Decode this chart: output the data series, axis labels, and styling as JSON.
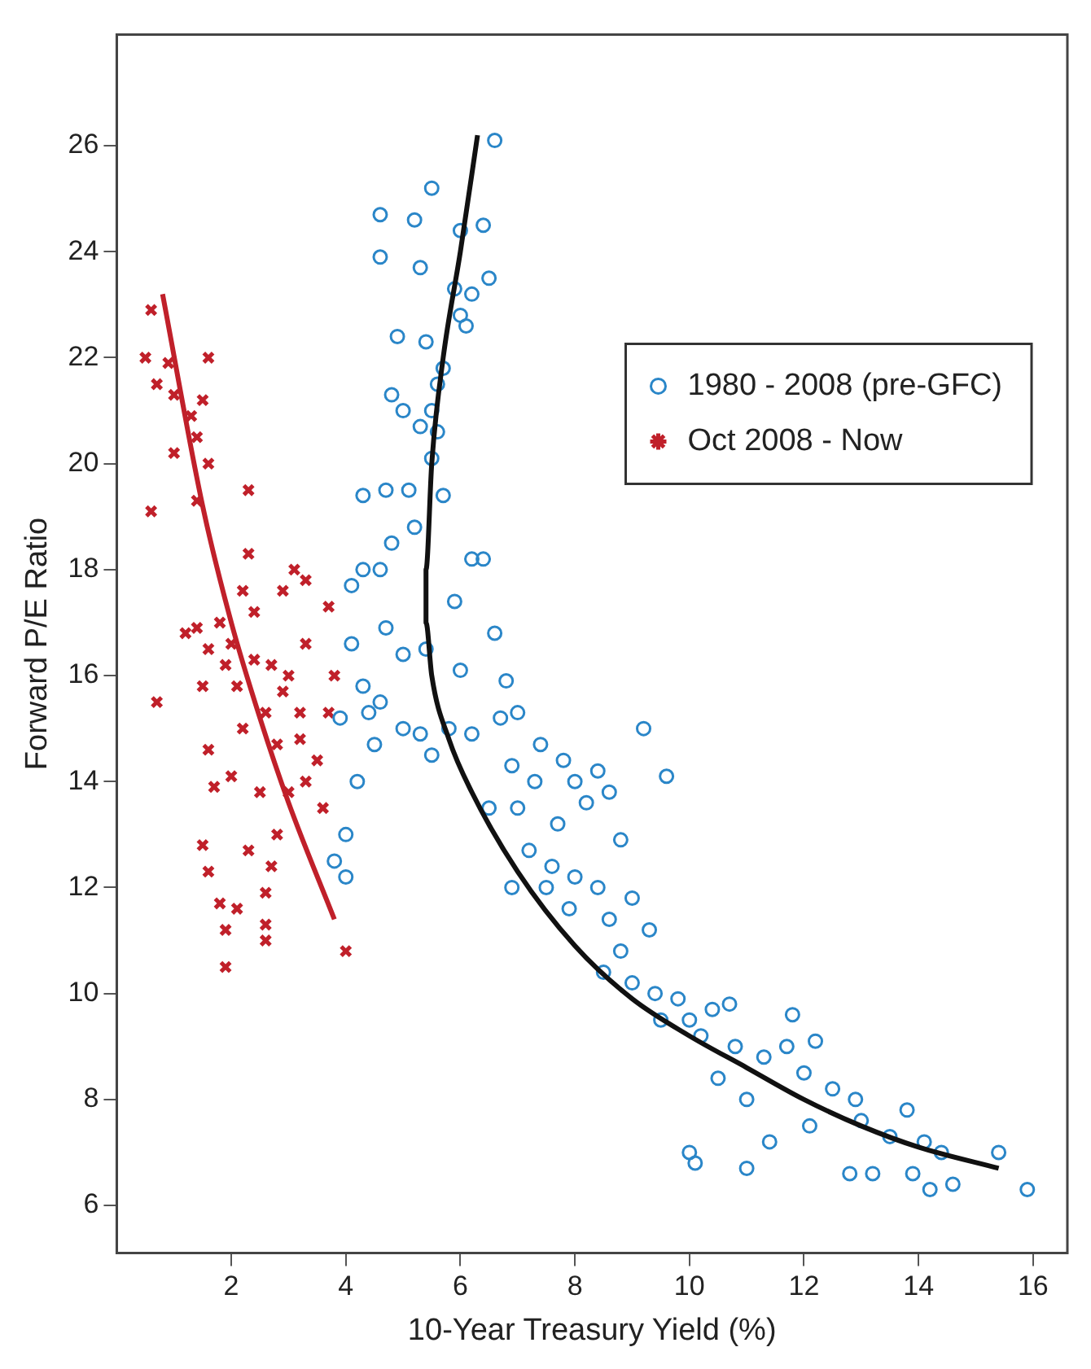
{
  "chart_data": {
    "type": "scatter",
    "xlabel": "10-Year Treasury Yield (%)",
    "ylabel": "Forward P/E Ratio",
    "xlim": [
      0,
      16.6
    ],
    "ylim": [
      5.1,
      28.1
    ],
    "xticks": [
      2,
      4,
      6,
      8,
      10,
      12,
      14,
      16
    ],
    "yticks": [
      6,
      8,
      10,
      12,
      14,
      16,
      18,
      20,
      22,
      24,
      26
    ],
    "grid": false,
    "legend": "top right",
    "series": [
      {
        "name": "1980 - 2008 (pre-GFC)",
        "marker": "circle",
        "color": "#2a86c8",
        "x": [
          6.6,
          5.5,
          4.6,
          5.2,
          6.4,
          6.0,
          4.6,
          5.3,
          6.2,
          6.5,
          5.9,
          6.0,
          6.1,
          4.9,
          5.4,
          5.6,
          5.7,
          5.5,
          5.0,
          4.8,
          5.3,
          5.6,
          5.5,
          5.1,
          4.7,
          4.3,
          5.7,
          5.2,
          6.2,
          6.4,
          4.8,
          4.6,
          4.3,
          4.1,
          5.9,
          6.6,
          4.7,
          5.4,
          6.0,
          6.8,
          5.0,
          4.4,
          3.9,
          4.1,
          4.3,
          4.6,
          5.3,
          5.8,
          6.2,
          5.5,
          6.7,
          7.0,
          7.4,
          6.9,
          7.3,
          7.8,
          8.0,
          8.4,
          8.6,
          9.2,
          9.6,
          7.7,
          8.2,
          8.8,
          6.5,
          7.2,
          7.6,
          8.0,
          8.4,
          9.0,
          8.6,
          7.9,
          9.3,
          8.8,
          9.0,
          9.4,
          9.8,
          8.5,
          10.0,
          10.4,
          10.7,
          10.2,
          10.8,
          10.5,
          11.3,
          11.8,
          11.7,
          12.2,
          12.0,
          11.0,
          12.5,
          12.9,
          13.0,
          12.1,
          13.5,
          13.8,
          14.1,
          14.4,
          15.4,
          10.0,
          10.1,
          11.0,
          11.4,
          12.8,
          13.2,
          13.9,
          14.2,
          14.6,
          15.9,
          3.8,
          4.0,
          4.2,
          4.0,
          4.5,
          5.0,
          7.0,
          6.9,
          7.5,
          9.5
        ],
        "values": [
          26.1,
          25.2,
          24.7,
          24.6,
          24.5,
          24.4,
          23.9,
          23.7,
          23.2,
          23.5,
          23.3,
          22.8,
          22.6,
          22.4,
          22.3,
          21.5,
          21.8,
          21.0,
          21.0,
          21.3,
          20.7,
          20.6,
          20.1,
          19.5,
          19.5,
          19.4,
          19.4,
          18.8,
          18.2,
          18.2,
          18.5,
          18.0,
          18.0,
          17.7,
          17.4,
          16.8,
          16.9,
          16.5,
          16.1,
          15.9,
          16.4,
          15.3,
          15.2,
          16.6,
          15.8,
          15.5,
          14.9,
          15.0,
          14.9,
          14.5,
          15.2,
          15.3,
          14.7,
          14.3,
          14.0,
          14.4,
          14.0,
          14.2,
          13.8,
          15.0,
          14.1,
          13.2,
          13.6,
          12.9,
          13.5,
          12.7,
          12.4,
          12.2,
          12.0,
          11.8,
          11.4,
          11.6,
          11.2,
          10.8,
          10.2,
          10.0,
          9.9,
          10.4,
          9.5,
          9.7,
          9.8,
          9.2,
          9.0,
          8.4,
          8.8,
          9.6,
          9.0,
          9.1,
          8.5,
          8.0,
          8.2,
          8.0,
          7.6,
          7.5,
          7.3,
          7.8,
          7.2,
          7.0,
          7.0,
          7.0,
          6.8,
          6.7,
          7.2,
          6.6,
          6.6,
          6.6,
          6.3,
          6.4,
          6.3,
          12.5,
          13.0,
          14.0,
          12.2,
          14.7,
          15.0,
          13.5,
          12.0,
          12.0,
          9.5
        ]
      },
      {
        "name": "Oct 2008 - Now",
        "marker": "cross",
        "color": "#c0202a",
        "x": [
          0.6,
          0.5,
          0.7,
          0.9,
          1.0,
          1.6,
          1.5,
          1.3,
          1.4,
          1.0,
          1.6,
          0.6,
          1.4,
          2.3,
          0.7,
          2.3,
          2.2,
          2.9,
          3.1,
          3.3,
          3.7,
          1.2,
          1.6,
          1.8,
          2.0,
          1.9,
          2.4,
          2.7,
          3.0,
          3.3,
          3.8,
          1.4,
          2.1,
          2.6,
          2.9,
          3.2,
          2.2,
          1.5,
          2.8,
          3.5,
          3.3,
          3.0,
          3.6,
          2.5,
          1.6,
          1.7,
          2.0,
          1.5,
          1.6,
          2.3,
          2.8,
          2.7,
          2.6,
          1.8,
          2.1,
          1.9,
          2.6,
          2.6,
          1.9,
          4.0,
          3.2,
          2.4,
          3.7
        ],
        "values": [
          22.9,
          22.0,
          21.5,
          21.9,
          21.3,
          22.0,
          21.2,
          20.9,
          20.5,
          20.2,
          20.0,
          19.1,
          19.3,
          19.5,
          15.5,
          18.3,
          17.6,
          17.6,
          18.0,
          17.8,
          17.3,
          16.8,
          16.5,
          17.0,
          16.6,
          16.2,
          16.3,
          16.2,
          16.0,
          16.6,
          16.0,
          16.9,
          15.8,
          15.3,
          15.7,
          15.3,
          15.0,
          15.8,
          14.7,
          14.4,
          14.0,
          13.8,
          13.5,
          13.8,
          14.6,
          13.9,
          14.1,
          12.8,
          12.3,
          12.7,
          13.0,
          12.4,
          11.9,
          11.7,
          11.6,
          11.2,
          11.3,
          11.0,
          10.5,
          10.8,
          14.8,
          17.2,
          15.3
        ]
      },
      {
        "type": "line",
        "marker": "none",
        "line_style": "solid",
        "color": "#111111",
        "x": [
          6.3,
          6.0,
          5.7,
          5.5,
          5.4,
          5.4,
          5.5,
          5.8,
          6.2,
          7.0,
          8.0,
          9.0,
          10.0,
          11.0,
          12.0,
          13.0,
          14.0,
          15.4
        ],
        "values": [
          26.2,
          24.0,
          22.0,
          20.0,
          18.0,
          17.0,
          16.0,
          14.8,
          13.8,
          12.3,
          10.9,
          9.9,
          9.2,
          8.6,
          8.0,
          7.5,
          7.1,
          6.7
        ]
      },
      {
        "type": "line",
        "marker": "none",
        "line_style": "solid",
        "color": "#c0202a",
        "x": [
          0.8,
          1.5,
          2.0,
          2.5,
          3.0,
          3.8
        ],
        "values": [
          23.2,
          19.2,
          17.0,
          15.2,
          13.6,
          11.4
        ]
      }
    ]
  }
}
